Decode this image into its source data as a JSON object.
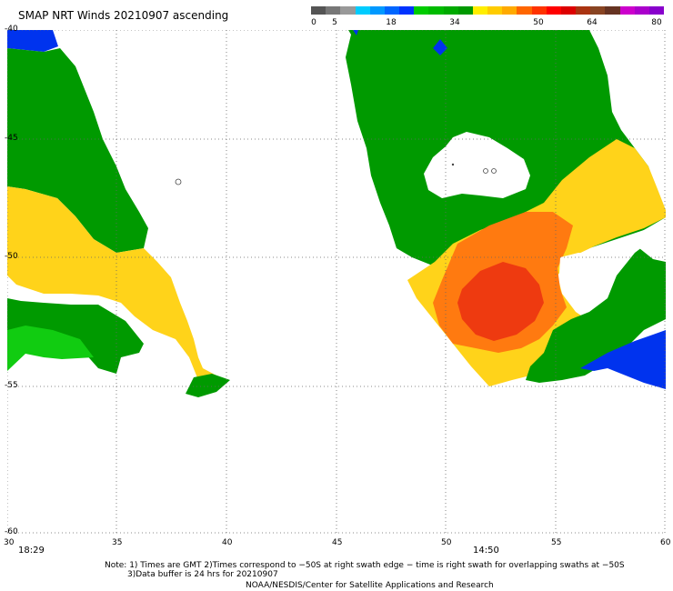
{
  "header": {
    "title": "SMAP NRT Winds 20210907 ascending"
  },
  "colorbar": {
    "labels": [
      "0",
      "5",
      "18",
      "34",
      "50",
      "64",
      "80"
    ],
    "colors": [
      "#555555",
      "#777777",
      "#999999",
      "#00ccff",
      "#0099ff",
      "#0066ff",
      "#0033ff",
      "#00cc00",
      "#00bb00",
      "#00aa00",
      "#009900",
      "#ffee00",
      "#ffcc00",
      "#ffaa00",
      "#ff6600",
      "#ff3300",
      "#ff0000",
      "#dd0000",
      "#aa3311",
      "#884422",
      "#663322",
      "#cc00cc",
      "#aa00cc",
      "#8800cc"
    ]
  },
  "axes": {
    "x_labels": [
      "30",
      "35",
      "40",
      "45",
      "50",
      "55",
      "60"
    ],
    "y_labels": [
      "-40",
      "-45",
      "-50",
      "-55",
      "-60"
    ]
  },
  "times": {
    "left": "18:29",
    "right": "14:50"
  },
  "footer": {
    "line1": "Note: 1) Times are GMT 2)Times correspond to −50S at right swath edge − time is right swath for overlapping swaths at −50S",
    "line2": "3)Data buffer is 24 hrs for 20210907",
    "line3": "NOAA/NESDIS/Center for Satellite Applications and Research"
  },
  "wind_colors": {
    "blue": "#0033ee",
    "green": "#009a00",
    "lightgreen": "#11cc11",
    "yellow": "#ffd31a",
    "orange": "#ff7a10",
    "red": "#ee3a10"
  }
}
